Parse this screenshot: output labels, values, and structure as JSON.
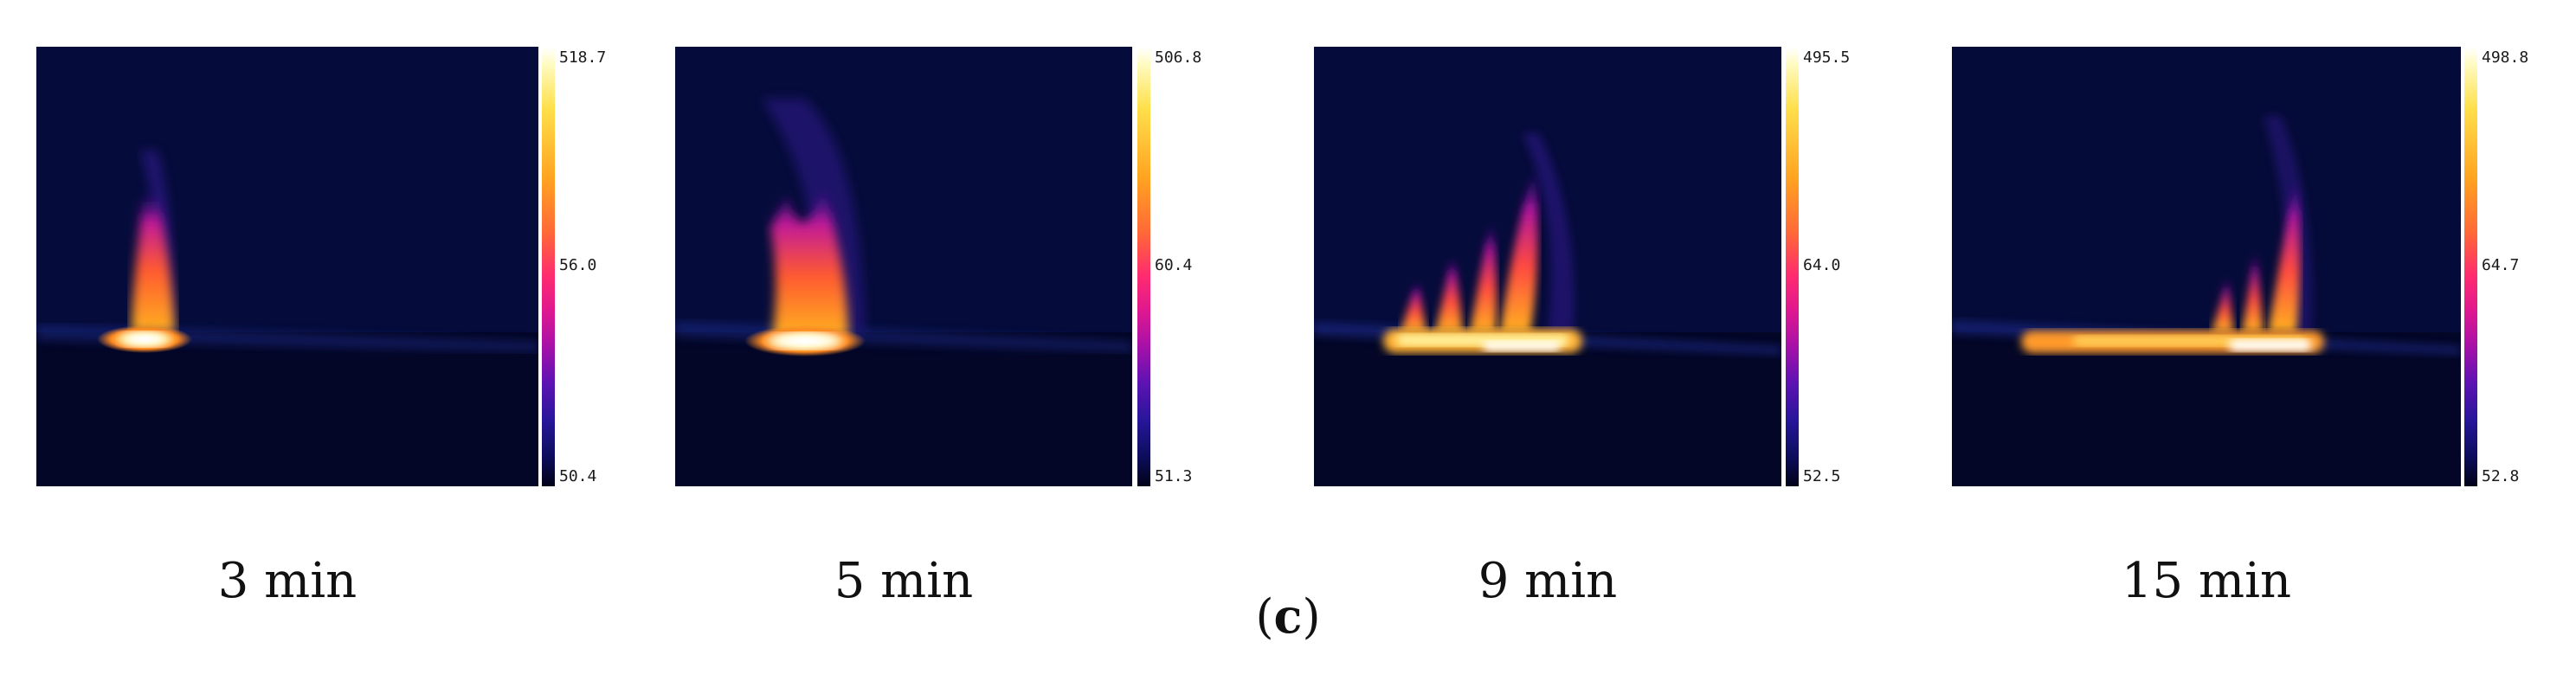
{
  "panels": [
    {
      "caption": "3 min",
      "scale": {
        "max": "518.7",
        "mid": "56.0",
        "min": "50.4"
      }
    },
    {
      "caption": "5 min",
      "scale": {
        "max": "506.8",
        "mid": "60.4",
        "min": "51.3"
      }
    },
    {
      "caption": "9 min",
      "scale": {
        "max": "495.5",
        "mid": "64.0",
        "min": "52.5"
      }
    },
    {
      "caption": "15 min",
      "scale": {
        "max": "498.8",
        "mid": "64.7",
        "min": "52.8"
      }
    }
  ],
  "figure_label": {
    "open": "(",
    "letter": "c",
    "close": ")"
  },
  "colors": {
    "background": "#030626",
    "hot": "#ffffff",
    "warm": "#ffa321",
    "cool": "#27169a"
  }
}
